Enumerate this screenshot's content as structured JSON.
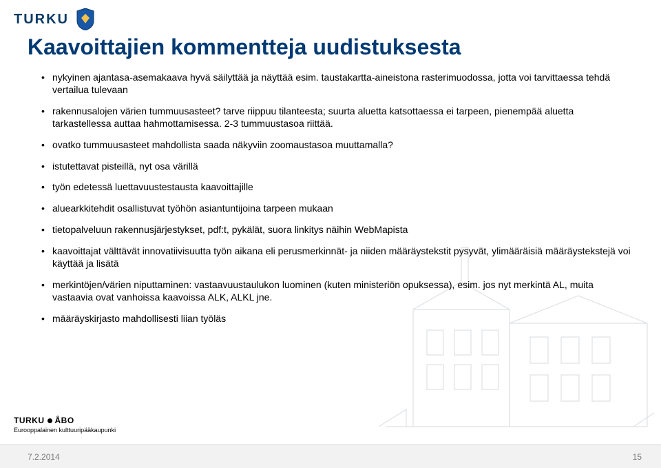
{
  "brand": {
    "word": "TURKU",
    "crest_colors": {
      "shield": "#1856a7",
      "accent": "#f2c14a",
      "outline": "#0a3a66"
    }
  },
  "title": {
    "text": "Kaavoittajien kommentteja uudistuksesta",
    "color": "#003973",
    "fontsize": 32
  },
  "bullets": [
    {
      "text": "nykyinen ajantasa-asemakaava hyvä säilyttää ja näyttää esim. taustakartta-aineistona rasterimuodossa, jotta voi tarvittaessa tehdä vertailua tulevaan",
      "indent": 0
    },
    {
      "text": "rakennusalojen värien tummuusasteet? tarve riippuu tilanteesta; suurta aluetta katsottaessa ei tarpeen, pienempää aluetta tarkastellessa auttaa hahmottamisessa. 2-3 tummuustasoa riittää.",
      "indent": 0
    },
    {
      "text": "ovatko tummuusasteet mahdollista saada näkyviin zoomaustasoa muuttamalla?",
      "indent": 0
    },
    {
      "text": "istutettavat pisteillä, nyt osa värillä",
      "indent": 0
    },
    {
      "text": "työn edetessä luettavuustestausta kaavoittajille",
      "indent": 0
    },
    {
      "text": "aluearkkitehdit osallistuvat työhön asiantuntijoina tarpeen mukaan",
      "indent": 0
    },
    {
      "text": "tietopalveluun rakennusjärjestykset, pdf:t, pykälät, suora linkitys näihin WebMapista",
      "indent": 0
    },
    {
      "text": "kaavoittajat välttävät innovatiivisuutta työn aikana eli perusmerkinnät- ja niiden määräystekstit pysyvät, ylimääräisiä määräystekstejä voi käyttää ja lisätä",
      "indent": 0
    },
    {
      "text": "merkintöjen/värien niputtaminen: vastaavuustaulukon luominen (kuten ministeriön opuksessa), esim. jos nyt merkintä AL, muita vastaavia ovat vanhoissa kaavoissa ALK, ALKL jne.",
      "indent": 0
    },
    {
      "text": "määräyskirjasto mahdollisesti liian työläs",
      "indent": 0
    }
  ],
  "bullet_style": {
    "fontsize": 14,
    "color": "#000000",
    "line_height": 1.28,
    "gap": 13
  },
  "footer_logo": {
    "line1_left": "TURKU",
    "line1_right": "ÅBO",
    "line2": "Eurooppalainen kulttuuripääkaupunki"
  },
  "footer": {
    "date": "7.2.2014",
    "page": "15",
    "bg": "#f2f2f2",
    "color": "#7a7a7a"
  },
  "illustration": {
    "stroke": "#6f7b88",
    "opacity": 0.22
  }
}
